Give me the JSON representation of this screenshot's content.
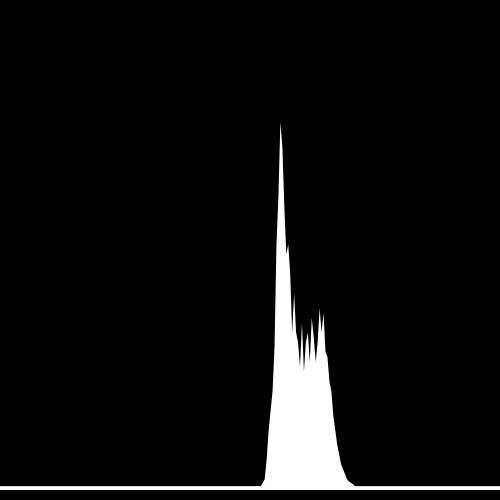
{
  "chart_data": {
    "type": "area",
    "title": "",
    "xlabel": "",
    "ylabel": "",
    "xlim": [
      0,
      255
    ],
    "ylim": [
      0,
      1
    ],
    "grid": false,
    "legend": "none",
    "colors": {
      "background": "#000000",
      "fill": "#ffffff",
      "baseline": "#ffffff"
    },
    "series": [
      {
        "points": [
          [
            0,
            0.006
          ],
          [
            133,
            0.006
          ],
          [
            135,
            0.02
          ],
          [
            136,
            0.06
          ],
          [
            137,
            0.12
          ],
          [
            138,
            0.16
          ],
          [
            139,
            0.2
          ],
          [
            140,
            0.29
          ],
          [
            141,
            0.5
          ],
          [
            142,
            0.6
          ],
          [
            143,
            0.75
          ],
          [
            144,
            0.7
          ],
          [
            145,
            0.58
          ],
          [
            146,
            0.48
          ],
          [
            147,
            0.5
          ],
          [
            148,
            0.44
          ],
          [
            149,
            0.32
          ],
          [
            150,
            0.4
          ],
          [
            151,
            0.32
          ],
          [
            152,
            0.3
          ],
          [
            153,
            0.25
          ],
          [
            154,
            0.34
          ],
          [
            155,
            0.24
          ],
          [
            156,
            0.3
          ],
          [
            157,
            0.32
          ],
          [
            158,
            0.26
          ],
          [
            159,
            0.35
          ],
          [
            160,
            0.31
          ],
          [
            161,
            0.26
          ],
          [
            162,
            0.3
          ],
          [
            163,
            0.37
          ],
          [
            164,
            0.32
          ],
          [
            165,
            0.36
          ],
          [
            166,
            0.28
          ],
          [
            167,
            0.27
          ],
          [
            168,
            0.22
          ],
          [
            169,
            0.2
          ],
          [
            170,
            0.15
          ],
          [
            171,
            0.12
          ],
          [
            172,
            0.09
          ],
          [
            173,
            0.07
          ],
          [
            174,
            0.05
          ],
          [
            175,
            0.04
          ],
          [
            176,
            0.03
          ],
          [
            177,
            0.02
          ],
          [
            178,
            0.015
          ],
          [
            180,
            0.01
          ],
          [
            181,
            0.006
          ],
          [
            255,
            0.006
          ]
        ]
      }
    ]
  }
}
